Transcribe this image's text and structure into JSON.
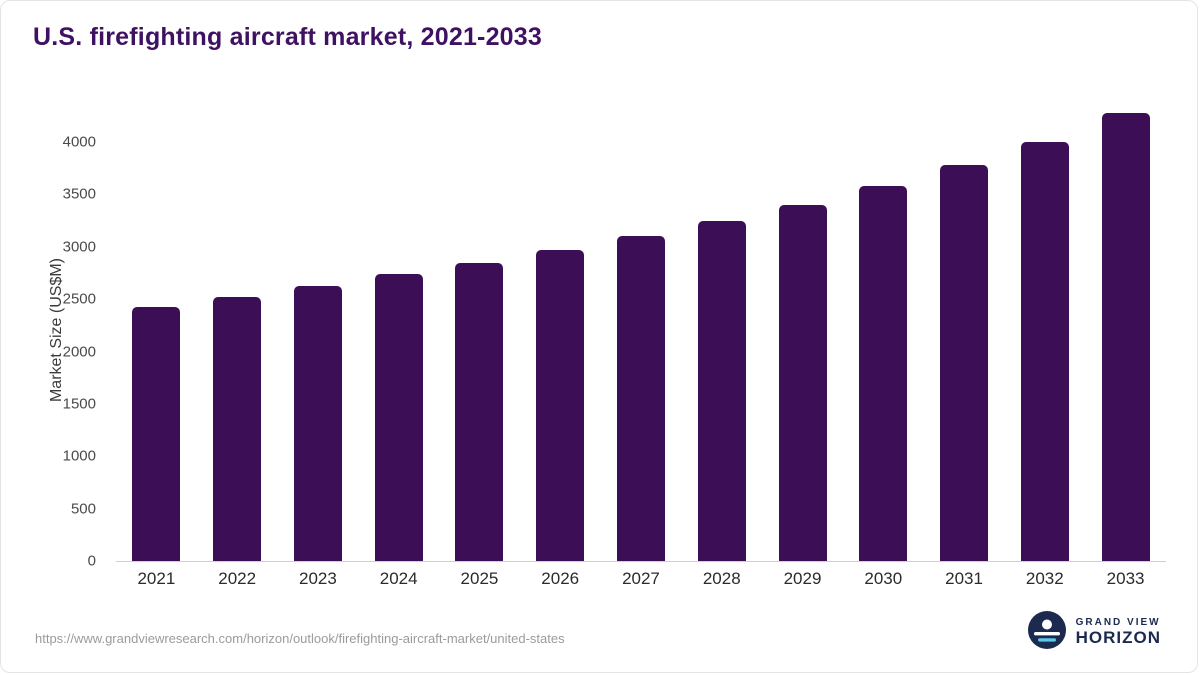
{
  "title": "U.S. firefighting aircraft market, 2021-2033",
  "source_url": "https://www.grandviewresearch.com/horizon/outlook/firefighting-aircraft-market/united-states",
  "logo": {
    "line1": "GRAND VIEW",
    "line2": "HORIZON",
    "color": "#1b2a4e"
  },
  "colors": {
    "bar": "#3b0e55",
    "title": "#3f1163",
    "axis_text": "#4a4a4a",
    "baseline": "#cfcfcf"
  },
  "chart_data": {
    "type": "bar",
    "title": "U.S. firefighting aircraft market, 2021-2033",
    "categories": [
      "2021",
      "2022",
      "2023",
      "2024",
      "2025",
      "2026",
      "2027",
      "2028",
      "2029",
      "2030",
      "2031",
      "2032",
      "2033"
    ],
    "values": [
      2430,
      2520,
      2625,
      2740,
      2850,
      2970,
      3100,
      3245,
      3400,
      3580,
      3785,
      4000,
      4280
    ],
    "xlabel": "",
    "ylabel": "Market Size (US$M)",
    "ylim": [
      0,
      4440
    ],
    "yticks": [
      0,
      500,
      1000,
      1500,
      2000,
      2500,
      3000,
      3500,
      4000
    ],
    "grid": false,
    "legend": false,
    "bar_color": "#3b0e55"
  }
}
